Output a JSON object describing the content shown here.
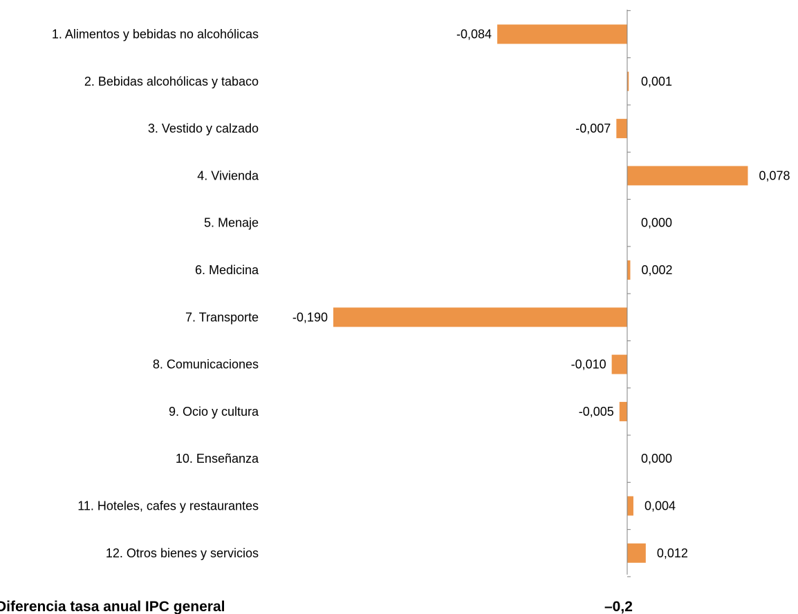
{
  "chart_data": {
    "type": "bar",
    "orientation": "horizontal",
    "categories": [
      "1. Alimentos y bebidas no alcohólicas",
      "2. Bebidas alcohólicas y tabaco",
      "3. Vestido y calzado",
      "4. Vivienda",
      "5. Menaje",
      "6. Medicina",
      "7. Transporte",
      "8. Comunicaciones",
      "9. Ocio y cultura",
      "10. Enseñanza",
      "11. Hoteles, cafes y restaurantes",
      "12. Otros bienes y servicios"
    ],
    "values": [
      -0.084,
      0.001,
      -0.007,
      0.078,
      0.0,
      0.002,
      -0.19,
      -0.01,
      -0.005,
      0.0,
      0.004,
      0.012
    ],
    "value_labels": [
      "-0,084",
      "0,001",
      "-0,007",
      "0,078",
      "0,000",
      "0,002",
      "-0,190",
      "-0,010",
      "-0,005",
      "0,000",
      "0,004",
      "0,012"
    ],
    "bar_color": "#ED9447",
    "axis_color": "#808080",
    "grid": false,
    "legend": "none",
    "title": "",
    "xlabel": "",
    "ylabel": ""
  },
  "footer": {
    "label": "Diferencia tasa anual IPC general",
    "value": "–0,2"
  }
}
